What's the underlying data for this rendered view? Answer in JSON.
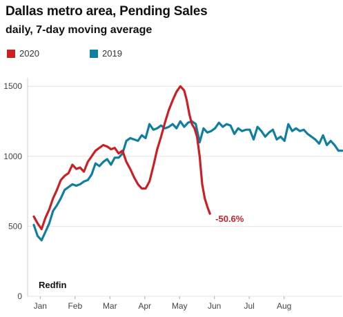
{
  "chart_data": {
    "type": "line",
    "title": "Dallas metro area, Pending Sales",
    "subtitle": "daily, 7-day moving average",
    "xlabel": "",
    "ylabel": "",
    "x_ticks": [
      "Jan",
      "Feb",
      "Mar",
      "Apr",
      "May",
      "Jun",
      "Jul",
      "Aug"
    ],
    "y_ticks": [
      0,
      500,
      1000,
      1500
    ],
    "ylim": [
      0,
      1560
    ],
    "grid": "horizontal",
    "legend_position": "top-left",
    "source": "Redfin",
    "annotation": {
      "text": "-50.6%",
      "series": "2020",
      "at_x": 137
    },
    "series": [
      {
        "name": "2020",
        "color": "#cc1f24",
        "x": [
          0,
          3,
          6,
          9,
          12,
          15,
          18,
          21,
          24,
          27,
          30,
          33,
          36,
          39,
          42,
          45,
          48,
          51,
          54,
          57,
          60,
          63,
          66,
          69,
          72,
          75,
          78,
          81,
          84,
          87,
          90,
          93,
          96,
          99,
          102,
          105,
          108,
          111,
          114,
          117,
          119,
          121,
          123,
          125,
          127,
          129,
          131,
          133,
          135,
          137
        ],
        "values": [
          570,
          520,
          480,
          560,
          620,
          700,
          760,
          830,
          860,
          880,
          940,
          910,
          920,
          890,
          960,
          1000,
          1040,
          1060,
          1080,
          1070,
          1050,
          1060,
          1020,
          1040,
          960,
          910,
          850,
          800,
          770,
          770,
          820,
          930,
          1050,
          1140,
          1240,
          1330,
          1400,
          1460,
          1500,
          1470,
          1400,
          1300,
          1230,
          1200,
          1140,
          1000,
          800,
          700,
          640,
          590
        ]
      },
      {
        "name": "2019",
        "color": "#0e7fa0",
        "x": [
          0,
          3,
          6,
          9,
          12,
          15,
          18,
          21,
          24,
          27,
          30,
          33,
          36,
          39,
          42,
          45,
          48,
          51,
          54,
          57,
          60,
          63,
          66,
          69,
          72,
          75,
          78,
          81,
          84,
          87,
          90,
          93,
          96,
          99,
          102,
          105,
          108,
          111,
          114,
          117,
          120,
          123,
          126,
          129,
          132,
          135,
          138,
          141,
          144,
          147,
          150,
          153,
          156,
          159,
          162,
          165,
          168,
          171,
          174,
          177,
          180,
          183,
          186,
          189,
          192,
          195,
          198,
          201,
          204,
          207,
          210,
          213,
          216,
          219,
          222,
          225,
          228,
          231,
          234,
          237,
          240
        ],
        "values": [
          510,
          430,
          400,
          460,
          520,
          610,
          650,
          700,
          760,
          780,
          800,
          790,
          800,
          820,
          830,
          870,
          950,
          930,
          960,
          980,
          940,
          990,
          990,
          1020,
          1110,
          1130,
          1120,
          1110,
          1150,
          1130,
          1230,
          1190,
          1200,
          1220,
          1200,
          1210,
          1230,
          1200,
          1250,
          1210,
          1240,
          1250,
          1230,
          1100,
          1200,
          1170,
          1180,
          1200,
          1240,
          1210,
          1230,
          1220,
          1160,
          1200,
          1180,
          1190,
          1190,
          1120,
          1210,
          1180,
          1140,
          1170,
          1190,
          1120,
          1140,
          1110,
          1230,
          1180,
          1200,
          1180,
          1190,
          1160,
          1140,
          1120,
          1090,
          1150,
          1080,
          1110,
          1080,
          1040,
          1040
        ]
      }
    ]
  }
}
